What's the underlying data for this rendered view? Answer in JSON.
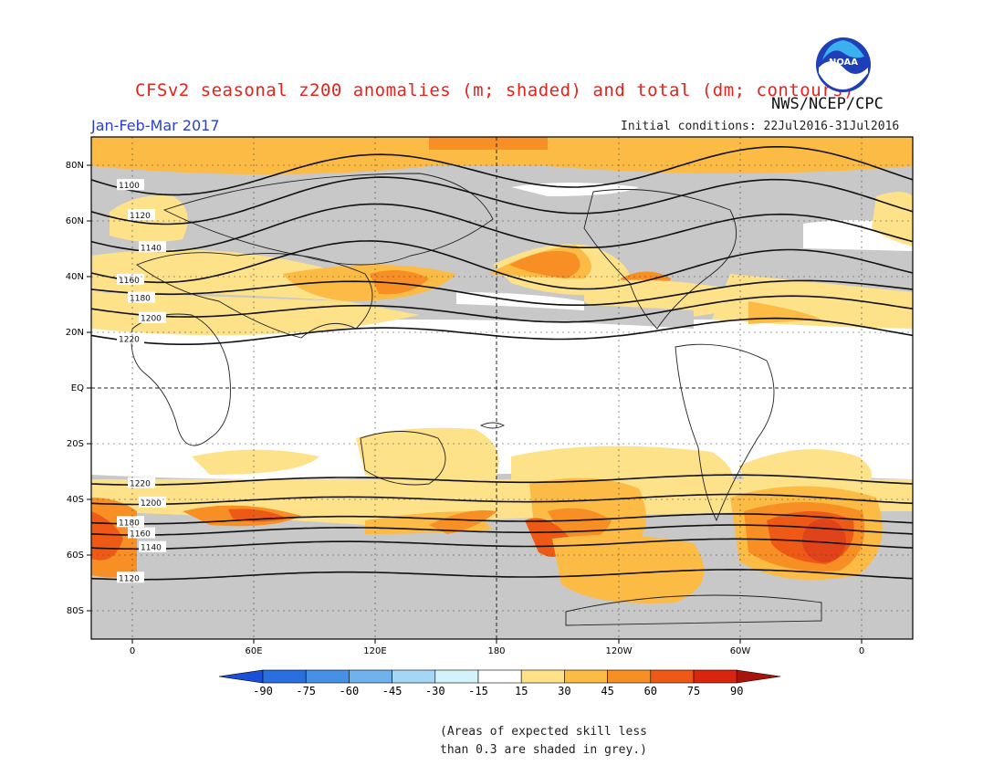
{
  "header": {
    "title": "CFSv2 seasonal z200 anomalies (m; shaded) and total (dm; contours)",
    "agency": "NWS/NCEP/CPC",
    "logo_text": "NOAA",
    "period": "Jan-Feb-Mar 2017",
    "initial_conditions": "Initial conditions: 22Jul2016-31Jul2016"
  },
  "axes": {
    "lat_labels": [
      "80N",
      "60N",
      "40N",
      "20N",
      "EQ",
      "20S",
      "40S",
      "60S",
      "80S"
    ],
    "lon_labels": [
      "0",
      "60E",
      "120E",
      "180",
      "120W",
      "60W",
      "0"
    ]
  },
  "contours": [
    {
      "label": "1100",
      "lat": 78
    },
    {
      "label": "1120",
      "lat": 68
    },
    {
      "label": "1140",
      "lat": 57
    },
    {
      "label": "1160",
      "lat": 44
    },
    {
      "label": "1180",
      "lat": 35
    },
    {
      "label": "1200",
      "lat": 28
    },
    {
      "label": "1220",
      "lat": 20
    },
    {
      "label": "1220",
      "lat": -33
    },
    {
      "label": "1200",
      "lat": -40
    },
    {
      "label": "1180",
      "lat": -47
    },
    {
      "label": "1160",
      "lat": -51
    },
    {
      "label": "1140",
      "lat": -56
    },
    {
      "label": "1120",
      "lat": -67
    }
  ],
  "colorbar": {
    "levels": [
      "-90",
      "-75",
      "-60",
      "-45",
      "-30",
      "-15",
      "15",
      "30",
      "45",
      "60",
      "75",
      "90"
    ],
    "colors": [
      "#1b4fd6",
      "#2a6fe0",
      "#4690e6",
      "#6fb2ee",
      "#a4d6f5",
      "#d4f2fa",
      "#ffffff",
      "#fde28a",
      "#fbbb45",
      "#f78f24",
      "#ee5a16",
      "#d9250e",
      "#a8130c"
    ]
  },
  "skill_note": [
    "(Areas of expected skill less",
    "than 0.3 are shaded in grey.)"
  ],
  "colors": {
    "grey": "#c8c8c8",
    "light_orange": "#fde28a",
    "orange": "#fbbb45",
    "dark_orange": "#f78f24",
    "red_orange": "#ee5a16",
    "title_red": "#e8221b",
    "period_blue": "#2a3fd0"
  }
}
